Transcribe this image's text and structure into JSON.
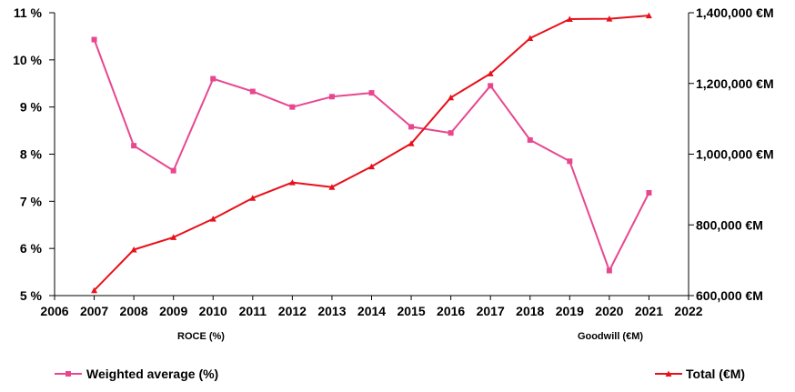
{
  "chart_data": {
    "type": "line",
    "x": [
      2007,
      2008,
      2009,
      2010,
      2011,
      2012,
      2013,
      2014,
      2015,
      2016,
      2017,
      2018,
      2019,
      2020,
      2021
    ],
    "xlim": [
      2006,
      2022
    ],
    "x_ticks": [
      2006,
      2007,
      2008,
      2009,
      2010,
      2011,
      2012,
      2013,
      2014,
      2015,
      2016,
      2017,
      2018,
      2019,
      2020,
      2021,
      2022
    ],
    "left_axis": {
      "caption": "ROCE (%)",
      "ylim": [
        5,
        11
      ],
      "ticks": [
        5,
        6,
        7,
        8,
        9,
        10,
        11
      ],
      "tick_labels": [
        "5 %",
        "6 %",
        "7 %",
        "8 %",
        "9 %",
        "10 %",
        "11 %"
      ]
    },
    "right_axis": {
      "caption": "Goodwill (€M)",
      "ylim": [
        600000,
        1400000
      ],
      "ticks": [
        600000,
        800000,
        1000000,
        1200000,
        1400000
      ],
      "tick_labels": [
        "600,000 €M",
        "800,000 €M",
        "1,000,000 €M",
        "1,200,000 €M",
        "1,400,000 €M"
      ]
    },
    "series": [
      {
        "name": "Weighted average (%)",
        "axis": "left",
        "color": "#e8478f",
        "marker": "square",
        "values": [
          10.43,
          8.18,
          7.65,
          9.6,
          9.33,
          9.0,
          9.22,
          9.3,
          8.58,
          8.45,
          9.45,
          8.3,
          7.85,
          5.53,
          7.18
        ]
      },
      {
        "name": "Total (€M)",
        "axis": "right",
        "color": "#e8101a",
        "marker": "triangle",
        "values": [
          615000,
          730000,
          765000,
          817000,
          876000,
          920000,
          907000,
          965000,
          1030000,
          1160000,
          1228000,
          1328000,
          1382000,
          1383000,
          1392000
        ]
      }
    ]
  }
}
